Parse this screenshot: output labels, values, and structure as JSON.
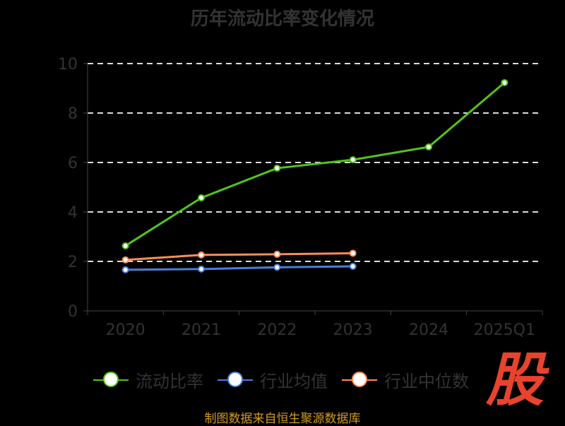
{
  "chart_data": {
    "type": "line",
    "title": "历年流动比率变化情况",
    "categories": [
      "2020",
      "2021",
      "2022",
      "2023",
      "2024",
      "2025Q1"
    ],
    "ylim": [
      0,
      10
    ],
    "yticks": [
      "0",
      "2",
      "4",
      "6",
      "8",
      "10"
    ],
    "grid": true,
    "legend_position": "bottom",
    "series": [
      {
        "name": "流动比率",
        "color": "#52c41a",
        "values": [
          2.63,
          4.57,
          5.77,
          6.11,
          6.63,
          9.23
        ]
      },
      {
        "name": "行业均值",
        "color": "#4a7fdc",
        "values": [
          1.66,
          1.69,
          1.76,
          1.8,
          null,
          null
        ]
      },
      {
        "name": "行业中位数",
        "color": "#ff8c5a",
        "values": [
          2.06,
          2.26,
          2.29,
          2.33,
          null,
          null
        ]
      }
    ]
  },
  "source": "制图数据来自恒生聚源数据库",
  "logo": "股"
}
